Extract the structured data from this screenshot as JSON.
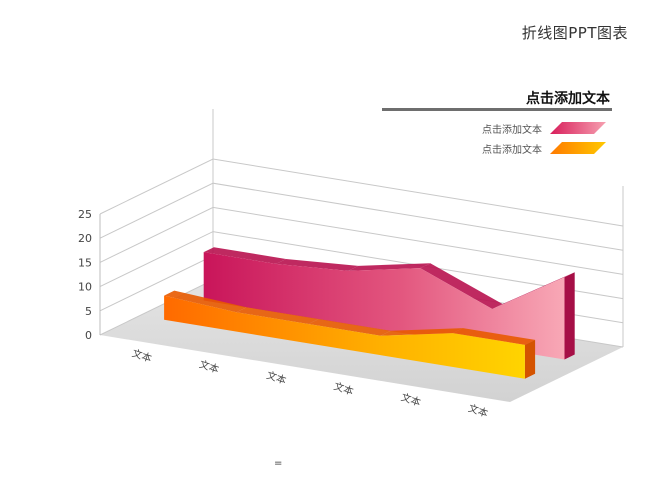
{
  "page": {
    "title": "折线图PPT图表",
    "bottom_mark": "="
  },
  "legend": {
    "header": "点击添加文本",
    "items": [
      {
        "label": "点击添加文本",
        "color_front": "#d81e5b",
        "color_back": "#f49aa8"
      },
      {
        "label": "点击添加文本",
        "color_front": "#ff7a00",
        "color_back": "#ffc800"
      }
    ]
  },
  "chart_data": {
    "type": "area",
    "style": "3d",
    "categories": [
      "文本",
      "文本",
      "文本",
      "文本",
      "文本",
      "文本"
    ],
    "yticks": [
      "0",
      "5",
      "10",
      "15",
      "20",
      "25"
    ],
    "ylim": [
      0,
      25
    ],
    "grid": true,
    "legend_position": "top-right",
    "series": [
      {
        "color_front": "#c9155a",
        "color_back": "#f6a0b0",
        "values": [
          10,
          10,
          11,
          14,
          8,
          17
        ]
      },
      {
        "color_front": "#ff6a00",
        "color_back": "#ffcc00",
        "values": [
          5,
          4,
          4,
          4,
          7,
          7
        ]
      }
    ]
  }
}
